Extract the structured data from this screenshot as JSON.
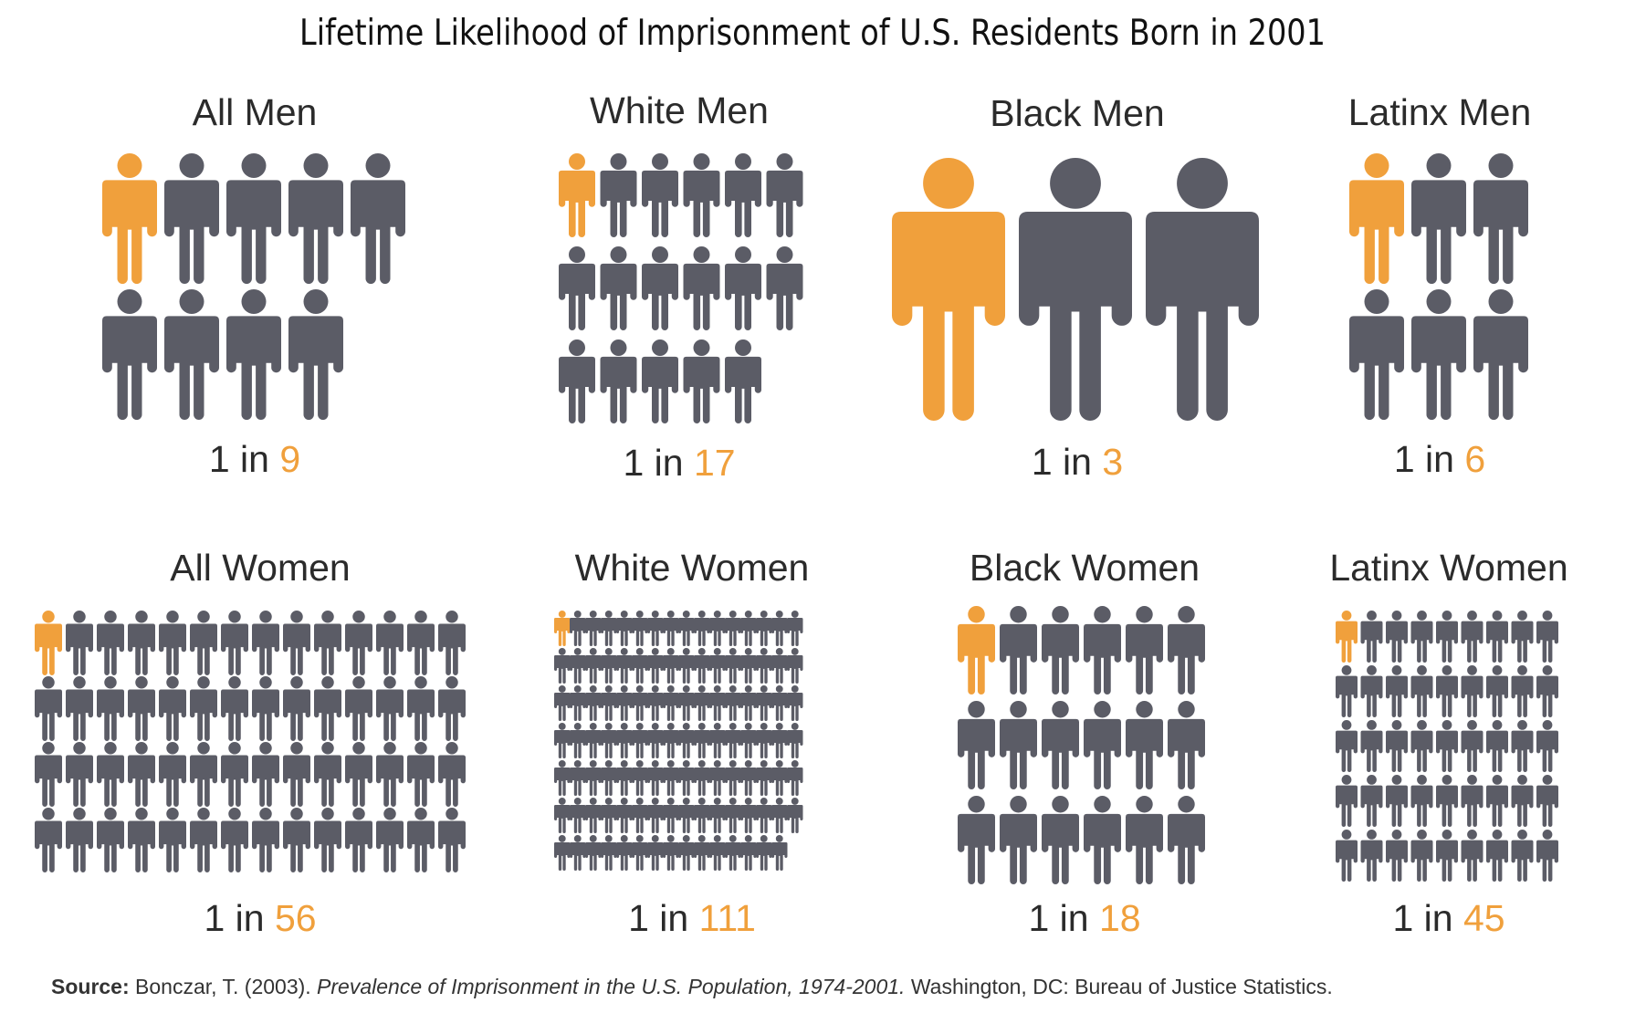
{
  "title": "Lifetime Likelihood of Imprisonment of U.S. Residents Born in 2001",
  "colors": {
    "highlight": "#f0a03c",
    "base": "#5b5c66"
  },
  "icon": "person-icon",
  "chart_data": {
    "type": "pictogram",
    "ratio_prefix": "1 in",
    "panels": [
      {
        "label": "All Men",
        "n": 9
      },
      {
        "label": "White Men",
        "n": 17
      },
      {
        "label": "Black Men",
        "n": 3
      },
      {
        "label": "Latinx Men",
        "n": 6
      },
      {
        "label": "All Women",
        "n": 56
      },
      {
        "label": "White Women",
        "n": 111
      },
      {
        "label": "Black Women",
        "n": 18
      },
      {
        "label": "Latinx Women",
        "n": 45
      }
    ]
  },
  "source": {
    "label": "Source:",
    "author": " Bonczar, T. (2003). ",
    "work": "Prevalence of Imprisonment in the U.S. Population, 1974-2001.",
    "publisher": " Washington, DC: Bureau of Justice Statistics."
  }
}
